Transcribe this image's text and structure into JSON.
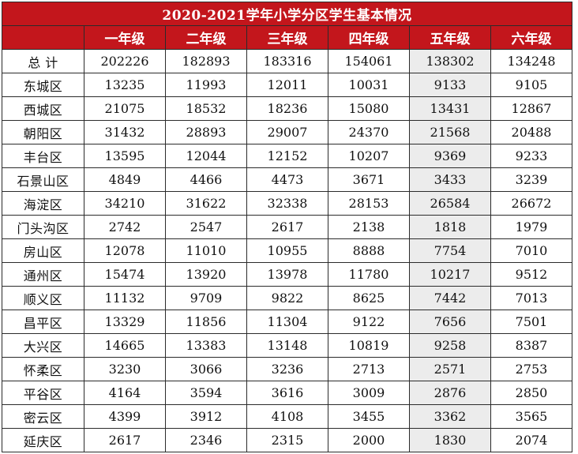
{
  "title": "2020-2021学年小学分区学生基本情况",
  "columns": [
    "",
    "一年级",
    "二年级",
    "三年级",
    "四年级",
    "五年级",
    "六年级"
  ],
  "highlight_column_index": 4,
  "colors": {
    "header_bg": "#c3161c",
    "header_text": "#ffffff",
    "highlight_bg": "#ececec",
    "border": "#2b2b2b"
  },
  "rows": [
    {
      "district": "总 计",
      "values": [
        "202226",
        "182893",
        "183316",
        "154061",
        "138302",
        "134248"
      ]
    },
    {
      "district": "东城区",
      "values": [
        "13235",
        "11993",
        "12011",
        "10031",
        "9133",
        "9105"
      ]
    },
    {
      "district": "西城区",
      "values": [
        "21075",
        "18532",
        "18236",
        "15080",
        "13431",
        "12867"
      ]
    },
    {
      "district": "朝阳区",
      "values": [
        "31432",
        "28893",
        "29007",
        "24370",
        "21568",
        "20488"
      ]
    },
    {
      "district": "丰台区",
      "values": [
        "13595",
        "12044",
        "12152",
        "10207",
        "9369",
        "9233"
      ]
    },
    {
      "district": "石景山区",
      "values": [
        "4849",
        "4466",
        "4473",
        "3671",
        "3433",
        "3239"
      ]
    },
    {
      "district": "海淀区",
      "values": [
        "34210",
        "31622",
        "32338",
        "28153",
        "26584",
        "26672"
      ]
    },
    {
      "district": "门头沟区",
      "values": [
        "2742",
        "2547",
        "2617",
        "2138",
        "1818",
        "1979"
      ]
    },
    {
      "district": "房山区",
      "values": [
        "12078",
        "11010",
        "10955",
        "8888",
        "7754",
        "7010"
      ]
    },
    {
      "district": "通州区",
      "values": [
        "15474",
        "13920",
        "13978",
        "11780",
        "10217",
        "9512"
      ]
    },
    {
      "district": "顺义区",
      "values": [
        "11132",
        "9709",
        "9822",
        "8625",
        "7442",
        "7013"
      ]
    },
    {
      "district": "昌平区",
      "values": [
        "13329",
        "11856",
        "11304",
        "9122",
        "7656",
        "7501"
      ]
    },
    {
      "district": "大兴区",
      "values": [
        "14665",
        "13383",
        "13148",
        "10819",
        "9258",
        "8387"
      ]
    },
    {
      "district": "怀柔区",
      "values": [
        "3230",
        "3066",
        "3236",
        "2713",
        "2571",
        "2753"
      ]
    },
    {
      "district": "平谷区",
      "values": [
        "4164",
        "3594",
        "3616",
        "3009",
        "2876",
        "2850"
      ]
    },
    {
      "district": "密云区",
      "values": [
        "4399",
        "3912",
        "4108",
        "3455",
        "3362",
        "3565"
      ]
    },
    {
      "district": "延庆区",
      "values": [
        "2617",
        "2346",
        "2315",
        "2000",
        "1830",
        "2074"
      ]
    }
  ]
}
